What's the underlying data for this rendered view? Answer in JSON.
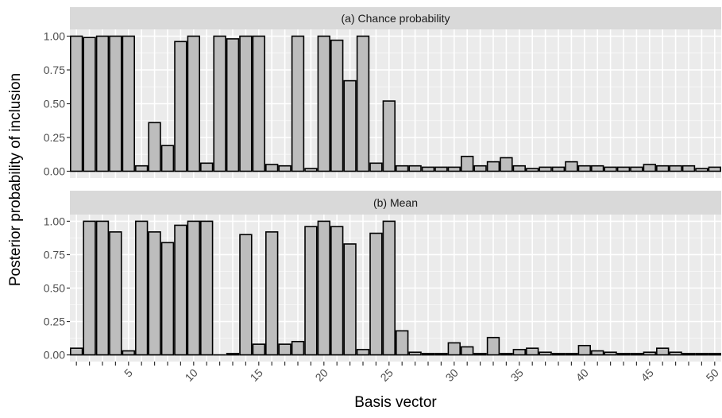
{
  "xlabel": "Basis vector",
  "ylabel": "Posterior probability of inclusion",
  "chart_data": {
    "type": "bar",
    "xlabel": "Basis vector",
    "ylabel": "Posterior probability of inclusion",
    "x": [
      1,
      2,
      3,
      4,
      5,
      6,
      7,
      8,
      9,
      10,
      11,
      12,
      13,
      14,
      15,
      16,
      17,
      18,
      19,
      20,
      21,
      22,
      23,
      24,
      25,
      26,
      27,
      28,
      29,
      30,
      31,
      32,
      33,
      34,
      35,
      36,
      37,
      38,
      39,
      40,
      41,
      42,
      43,
      44,
      45,
      46,
      47,
      48,
      49,
      50
    ],
    "x_tick_labels": [
      "5",
      "10",
      "15",
      "20",
      "25",
      "30",
      "35",
      "40",
      "45",
      "50"
    ],
    "y_ticks": [
      "0.00",
      "0.25",
      "0.50",
      "0.75",
      "1.00"
    ],
    "ylim": [
      0,
      1
    ],
    "grid": true,
    "panels": [
      {
        "title": "(a) Chance probability",
        "values": [
          1.0,
          0.99,
          1.0,
          1.0,
          1.0,
          0.04,
          0.36,
          0.19,
          0.96,
          1.0,
          0.06,
          1.0,
          0.98,
          1.0,
          1.0,
          0.05,
          0.04,
          1.0,
          0.02,
          1.0,
          0.97,
          0.67,
          1.0,
          0.06,
          0.52,
          0.04,
          0.04,
          0.03,
          0.03,
          0.03,
          0.11,
          0.04,
          0.07,
          0.1,
          0.04,
          0.02,
          0.03,
          0.03,
          0.07,
          0.04,
          0.04,
          0.03,
          0.03,
          0.03,
          0.05,
          0.04,
          0.04,
          0.04,
          0.02,
          0.03
        ]
      },
      {
        "title": "(b) Mean",
        "values": [
          0.05,
          1.0,
          1.0,
          0.92,
          0.03,
          1.0,
          0.92,
          0.84,
          0.97,
          1.0,
          1.0,
          0.0,
          0.01,
          0.9,
          0.08,
          0.92,
          0.08,
          0.1,
          0.96,
          1.0,
          0.96,
          0.83,
          0.04,
          0.91,
          1.0,
          0.18,
          0.02,
          0.01,
          0.01,
          0.09,
          0.06,
          0.01,
          0.13,
          0.01,
          0.04,
          0.05,
          0.02,
          0.01,
          0.01,
          0.07,
          0.03,
          0.02,
          0.01,
          0.01,
          0.02,
          0.05,
          0.02,
          0.01,
          0.01,
          0.01
        ]
      }
    ]
  }
}
